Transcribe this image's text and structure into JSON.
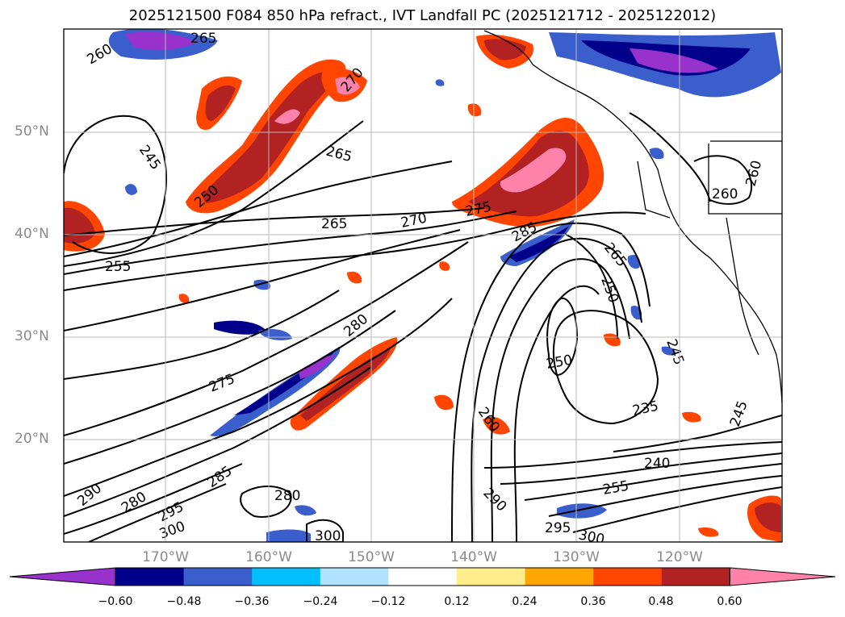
{
  "title": "2025121500 F084 850 hPa refract., IVT Landfall PC (2025121712 - 2025122012)",
  "lat_labels": [
    "50°N",
    "40°N",
    "30°N",
    "20°N"
  ],
  "lon_labels": [
    "170°W",
    "160°W",
    "150°W",
    "140°W",
    "130°W",
    "120°W"
  ],
  "colorbar": {
    "colors": [
      "#9932cc",
      "#00008b",
      "#3a5fcd",
      "#00bfff",
      "#b0e2ff",
      "#ffffff",
      "#ffec8b",
      "#ffa500",
      "#ff4500",
      "#b22222",
      "#ff82ab"
    ],
    "labels": [
      "−0.60",
      "−0.48",
      "−0.36",
      "−0.24",
      "−0.12",
      "0.12",
      "0.24",
      "0.36",
      "0.48",
      "0.60"
    ]
  },
  "contour_labels": [
    "260",
    "265",
    "245",
    "250",
    "270",
    "265",
    "265",
    "270",
    "275",
    "285",
    "265",
    "250",
    "260",
    "260",
    "255",
    "280",
    "275",
    "250",
    "245",
    "235",
    "260",
    "245",
    "290",
    "240",
    "255",
    "285",
    "280",
    "295",
    "300",
    "290",
    "295",
    "300",
    "300",
    "280"
  ]
}
